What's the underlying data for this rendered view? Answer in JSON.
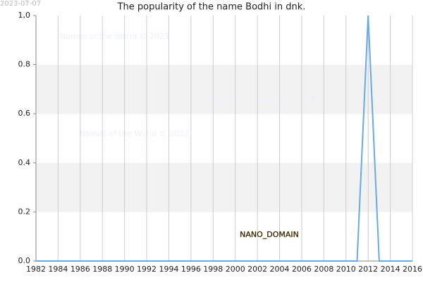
{
  "chart_data": {
    "type": "line",
    "title": "The popularity of the name Bodhi in dnk.",
    "date": "2023-07-07",
    "watermark": "Names of the World © 2023",
    "badge": "NANO_DOMAIN",
    "x": [
      1982,
      1983,
      1984,
      1985,
      1986,
      1987,
      1988,
      1989,
      1990,
      1991,
      1992,
      1993,
      1994,
      1995,
      1996,
      1997,
      1998,
      1999,
      2000,
      2001,
      2002,
      2003,
      2004,
      2005,
      2006,
      2007,
      2008,
      2009,
      2010,
      2011,
      2012,
      2013,
      2014,
      2015,
      2016
    ],
    "series": [
      {
        "color": "#66aaee",
        "values": [
          0,
          0,
          0,
          0,
          0,
          0,
          0,
          0,
          0,
          0,
          0,
          0,
          0,
          0,
          0,
          0,
          0,
          0,
          0,
          0,
          0,
          0,
          0,
          0,
          0,
          0,
          0,
          0,
          0,
          0,
          1,
          0,
          0,
          0,
          0
        ]
      }
    ],
    "xlim": [
      1982,
      2016
    ],
    "xticks": [
      1982,
      1984,
      1986,
      1988,
      1990,
      1992,
      1994,
      1996,
      1998,
      2000,
      2002,
      2004,
      2006,
      2008,
      2010,
      2012,
      2014,
      2016
    ],
    "ylim": [
      0,
      1
    ],
    "yticks": [
      {
        "value": 0,
        "label": "0.0"
      },
      {
        "value": 0.2,
        "label": "0.2"
      },
      {
        "value": 0.4,
        "label": "0.4"
      },
      {
        "value": 0.6,
        "label": "0.6"
      },
      {
        "value": 0.8,
        "label": "0.8"
      },
      {
        "value": 1,
        "label": "1,0"
      }
    ],
    "grid": true
  }
}
